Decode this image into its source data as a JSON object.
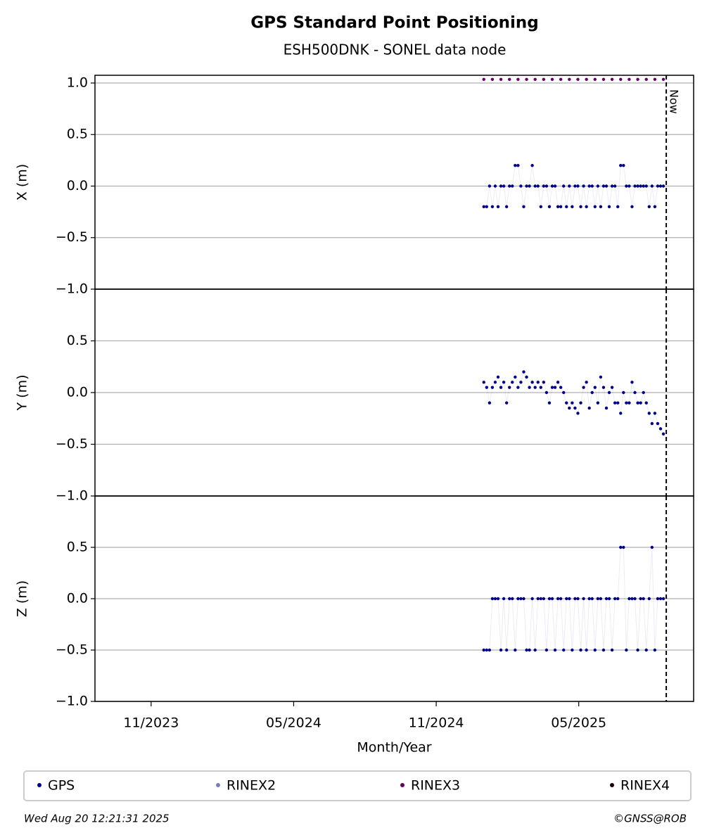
{
  "title": "GPS Standard Point Positioning",
  "subtitle": "ESH500DNK - SONEL data node",
  "footer_left": "Wed Aug 20 12:21:31 2025",
  "footer_right": "©GNSS@ROB",
  "now": {
    "value": 2025.64,
    "label": "Now"
  },
  "legend": [
    {
      "name": "GPS",
      "color": "#00008b"
    },
    {
      "name": "RINEX2",
      "color": "#7b7bc8"
    },
    {
      "name": "RINEX3",
      "color": "#660066"
    },
    {
      "name": "RINEX4",
      "color": "#1a0010"
    }
  ],
  "chart_data": [
    {
      "type": "scatter",
      "ylabel": "X (m)",
      "xlim": [
        2023.636,
        2025.736
      ],
      "ylim": [
        -1,
        1.075
      ],
      "grid": true,
      "yticks": [
        {
          "value": -1,
          "label": "−1.0"
        },
        {
          "value": -0.5,
          "label": "−0.5"
        },
        {
          "value": 0,
          "label": "0.0"
        },
        0.5,
        {
          "value": 1,
          "label": "1.0"
        }
      ],
      "x": [
        2025.0,
        2025.01,
        2025.02,
        2025.03,
        2025.04,
        2025.05,
        2025.06,
        2025.07,
        2025.08,
        2025.09,
        2025.1,
        2025.11,
        2025.12,
        2025.13,
        2025.14,
        2025.15,
        2025.16,
        2025.17,
        2025.18,
        2025.19,
        2025.2,
        2025.21,
        2025.22,
        2025.23,
        2025.24,
        2025.25,
        2025.26,
        2025.27,
        2025.28,
        2025.29,
        2025.3,
        2025.31,
        2025.32,
        2025.33,
        2025.34,
        2025.35,
        2025.36,
        2025.37,
        2025.38,
        2025.39,
        2025.4,
        2025.41,
        2025.42,
        2025.43,
        2025.44,
        2025.45,
        2025.46,
        2025.47,
        2025.48,
        2025.49,
        2025.5,
        2025.51,
        2025.52,
        2025.53,
        2025.54,
        2025.55,
        2025.56,
        2025.57,
        2025.58,
        2025.59,
        2025.6,
        2025.61,
        2025.62,
        2025.63
      ],
      "series": [
        {
          "name": "GPS",
          "color": "#00008b",
          "values": [
            -0.2,
            -0.2,
            0,
            -0.2,
            0,
            -0.2,
            0,
            0,
            -0.2,
            0,
            0,
            0.2,
            0.2,
            0,
            -0.2,
            0,
            0,
            0.2,
            0,
            0,
            -0.2,
            0,
            0,
            -0.2,
            0,
            0,
            -0.2,
            -0.2,
            0,
            -0.2,
            0,
            -0.2,
            0,
            0,
            -0.2,
            0,
            -0.2,
            0,
            0,
            -0.2,
            0,
            -0.2,
            0,
            0,
            -0.2,
            0,
            0,
            -0.2,
            0.2,
            0.2,
            0,
            0,
            -0.2,
            0,
            0,
            0,
            0,
            0,
            -0.2,
            0,
            -0.2,
            0,
            0,
            0
          ]
        },
        {
          "name": "RINEX3",
          "color": "#660066",
          "x": [
            2025.0,
            2025.03,
            2025.06,
            2025.09,
            2025.12,
            2025.15,
            2025.18,
            2025.21,
            2025.24,
            2025.27,
            2025.3,
            2025.33,
            2025.36,
            2025.39,
            2025.42,
            2025.45,
            2025.48,
            2025.51,
            2025.54,
            2025.57,
            2025.6,
            2025.63
          ],
          "values": [
            1.035,
            1.035,
            1.035,
            1.035,
            1.035,
            1.035,
            1.035,
            1.035,
            1.035,
            1.035,
            1.035,
            1.035,
            1.035,
            1.035,
            1.035,
            1.035,
            1.035,
            1.035,
            1.035,
            1.035,
            1.035,
            1.035
          ]
        }
      ]
    },
    {
      "type": "scatter",
      "ylabel": "Y (m)",
      "xlim": [
        2023.636,
        2025.736
      ],
      "ylim": [
        -1,
        1
      ],
      "grid": true,
      "yticks": [
        {
          "value": -1,
          "label": "−1.0"
        },
        {
          "value": -0.5,
          "label": "−0.5"
        },
        {
          "value": 0,
          "label": "0.0"
        },
        0.5
      ],
      "x": [
        2025.0,
        2025.01,
        2025.02,
        2025.03,
        2025.04,
        2025.05,
        2025.06,
        2025.07,
        2025.08,
        2025.09,
        2025.1,
        2025.11,
        2025.12,
        2025.13,
        2025.14,
        2025.15,
        2025.16,
        2025.17,
        2025.18,
        2025.19,
        2025.2,
        2025.21,
        2025.22,
        2025.23,
        2025.24,
        2025.25,
        2025.26,
        2025.27,
        2025.28,
        2025.29,
        2025.3,
        2025.31,
        2025.32,
        2025.33,
        2025.34,
        2025.35,
        2025.36,
        2025.37,
        2025.38,
        2025.39,
        2025.4,
        2025.41,
        2025.42,
        2025.43,
        2025.44,
        2025.45,
        2025.46,
        2025.47,
        2025.48,
        2025.49,
        2025.5,
        2025.51,
        2025.52,
        2025.53,
        2025.54,
        2025.55,
        2025.56,
        2025.57,
        2025.58,
        2025.59,
        2025.6,
        2025.61,
        2025.62,
        2025.63
      ],
      "series": [
        {
          "name": "GPS",
          "color": "#00008b",
          "values": [
            0.1,
            0.05,
            -0.1,
            0.05,
            0.1,
            0.15,
            0.05,
            0.1,
            -0.1,
            0.05,
            0.1,
            0.15,
            0.05,
            0.1,
            0.2,
            0.15,
            0.05,
            0.1,
            0.05,
            0.1,
            0.05,
            0.1,
            0,
            -0.1,
            0.05,
            0.05,
            0.1,
            0.05,
            0,
            -0.1,
            -0.15,
            -0.1,
            -0.15,
            -0.2,
            -0.1,
            0.05,
            0.1,
            -0.15,
            0,
            0.05,
            -0.1,
            0.15,
            0.05,
            -0.15,
            0,
            0.05,
            -0.1,
            -0.1,
            -0.2,
            0,
            -0.1,
            -0.1,
            0.1,
            0,
            -0.1,
            -0.1,
            0,
            -0.1,
            -0.2,
            -0.3,
            -0.2,
            -0.3,
            -0.35,
            -0.4
          ]
        }
      ]
    },
    {
      "type": "scatter",
      "ylabel": "Z (m)",
      "xlabel": "Month/Year",
      "xlim": [
        2023.636,
        2025.736
      ],
      "ylim": [
        -1,
        1
      ],
      "grid": true,
      "yticks": [
        {
          "value": -1,
          "label": "−1.0"
        },
        {
          "value": -0.5,
          "label": "−0.5"
        },
        {
          "value": 0,
          "label": "0.0"
        },
        0.5
      ],
      "xticks": [
        {
          "value": 2023.833,
          "label": "11/2023"
        },
        {
          "value": 2024.333,
          "label": "05/2024"
        },
        {
          "value": 2024.833,
          "label": "11/2024"
        },
        {
          "value": 2025.333,
          "label": "05/2025"
        }
      ],
      "x": [
        2025.0,
        2025.01,
        2025.02,
        2025.03,
        2025.04,
        2025.05,
        2025.06,
        2025.07,
        2025.08,
        2025.09,
        2025.1,
        2025.11,
        2025.12,
        2025.13,
        2025.14,
        2025.15,
        2025.16,
        2025.17,
        2025.18,
        2025.19,
        2025.2,
        2025.21,
        2025.22,
        2025.23,
        2025.24,
        2025.25,
        2025.26,
        2025.27,
        2025.28,
        2025.29,
        2025.3,
        2025.31,
        2025.32,
        2025.33,
        2025.34,
        2025.35,
        2025.36,
        2025.37,
        2025.38,
        2025.39,
        2025.4,
        2025.41,
        2025.42,
        2025.43,
        2025.44,
        2025.45,
        2025.46,
        2025.47,
        2025.48,
        2025.49,
        2025.5,
        2025.51,
        2025.52,
        2025.53,
        2025.54,
        2025.55,
        2025.56,
        2025.57,
        2025.58,
        2025.59,
        2025.6,
        2025.61,
        2025.62,
        2025.63
      ],
      "series": [
        {
          "name": "GPS",
          "color": "#00008b",
          "values": [
            -0.5,
            -0.5,
            -0.5,
            0,
            0,
            0,
            -0.5,
            0,
            -0.5,
            0,
            0,
            -0.5,
            0,
            0,
            0,
            -0.5,
            -0.5,
            0,
            -0.5,
            0,
            0,
            0,
            -0.5,
            0,
            0,
            -0.5,
            0,
            0,
            -0.5,
            0,
            0,
            -0.5,
            0,
            0,
            -0.5,
            0,
            -0.5,
            0,
            0,
            -0.5,
            0,
            0,
            -0.5,
            0,
            0,
            -0.5,
            0,
            0,
            0.5,
            0.5,
            -0.5,
            0,
            0,
            0,
            -0.5,
            0,
            0,
            -0.5,
            0,
            0.5,
            -0.5,
            0,
            0,
            0
          ]
        }
      ]
    }
  ]
}
